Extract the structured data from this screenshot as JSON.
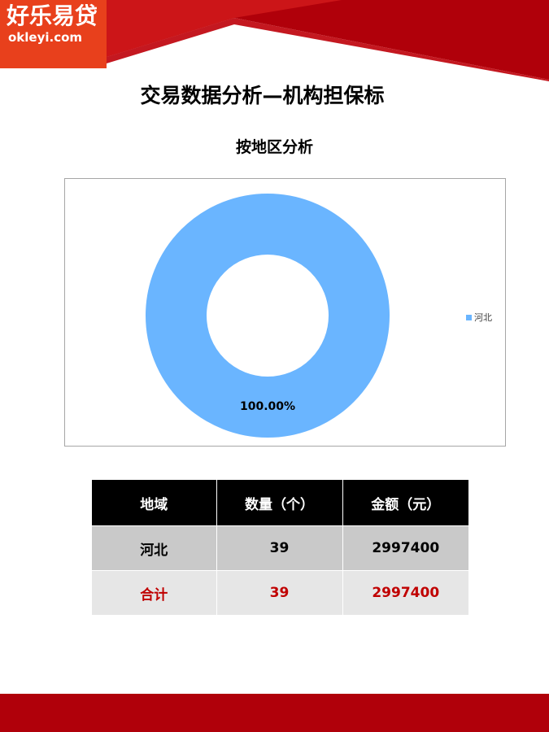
{
  "logo": {
    "main": "好乐易贷",
    "sub": "okleyi.com"
  },
  "page": {
    "title": "交易数据分析—机构担保标"
  },
  "chart_data": {
    "type": "pie",
    "title": "按地区分析",
    "categories": [
      "河北"
    ],
    "values": [
      100.0
    ],
    "data_labels": [
      "100.00%"
    ],
    "legend_position": "right",
    "colors": [
      "#6ab5ff"
    ]
  },
  "table": {
    "headers": [
      "地域",
      "数量（个）",
      "金额（元）"
    ],
    "rows": [
      [
        "河北",
        "39",
        "2997400"
      ],
      [
        "合计",
        "39",
        "2997400"
      ]
    ]
  },
  "colors": {
    "brand_red": "#b0000a",
    "logo_orange": "#e8401c",
    "total_red": "#c00000"
  }
}
